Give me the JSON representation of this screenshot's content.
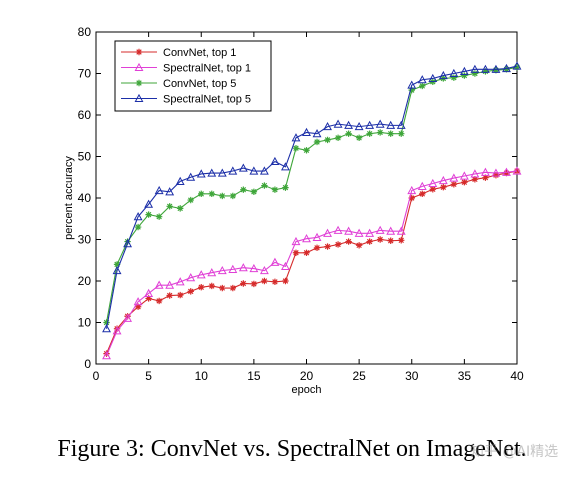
{
  "chart_data": {
    "type": "line",
    "xlabel": "epoch",
    "ylabel": "percent accuracy",
    "xlim": [
      0,
      40
    ],
    "ylim": [
      0,
      80
    ],
    "xticks": [
      0,
      5,
      10,
      15,
      20,
      25,
      30,
      35,
      40
    ],
    "yticks": [
      0,
      10,
      20,
      30,
      40,
      50,
      60,
      70,
      80
    ],
    "grid": false,
    "legend_position": "top-left",
    "x": [
      1,
      2,
      3,
      4,
      5,
      6,
      7,
      8,
      9,
      10,
      11,
      12,
      13,
      14,
      15,
      16,
      17,
      18,
      19,
      20,
      21,
      22,
      23,
      24,
      25,
      26,
      27,
      28,
      29,
      30,
      31,
      32,
      33,
      34,
      35,
      36,
      37,
      38,
      39,
      40
    ],
    "series": [
      {
        "name": "ConvNet, top 1",
        "color": "#d62b2b",
        "marker": "star",
        "values": [
          2.5,
          8.5,
          11.5,
          13.8,
          15.8,
          15.2,
          16.5,
          16.6,
          17.5,
          18.5,
          18.8,
          18.3,
          18.3,
          19.4,
          19.3,
          20.0,
          19.8,
          20.0,
          26.8,
          26.8,
          28.0,
          28.3,
          28.8,
          29.5,
          28.6,
          29.5,
          30.0,
          29.7,
          29.8,
          40.0,
          41.0,
          42.1,
          42.6,
          43.3,
          43.8,
          44.5,
          44.9,
          45.5,
          46.0,
          46.5
        ]
      },
      {
        "name": "SpectralNet, top 1",
        "color": "#e040d6",
        "marker": "triangle",
        "values": [
          2.0,
          8.0,
          11.0,
          15.0,
          17.0,
          19.0,
          19.0,
          19.8,
          20.8,
          21.5,
          22.0,
          22.5,
          22.8,
          23.2,
          23.0,
          22.5,
          24.5,
          23.5,
          29.5,
          30.2,
          30.5,
          31.5,
          32.2,
          32.0,
          31.5,
          31.5,
          32.2,
          32.0,
          32.0,
          41.8,
          42.8,
          43.5,
          44.2,
          44.8,
          45.3,
          45.8,
          46.2,
          46.0,
          46.2,
          46.5
        ]
      },
      {
        "name": "ConvNet, top 5",
        "color": "#3fa63a",
        "marker": "star",
        "values": [
          10.0,
          24.0,
          29.5,
          33.0,
          36.0,
          35.5,
          38.0,
          37.5,
          39.5,
          41.0,
          41.0,
          40.5,
          40.5,
          42.0,
          41.5,
          43.0,
          42.0,
          42.5,
          52.0,
          51.5,
          53.5,
          54.0,
          54.5,
          55.5,
          54.5,
          55.5,
          55.8,
          55.5,
          55.5,
          66.0,
          67.0,
          68.0,
          68.8,
          69.0,
          69.5,
          70.0,
          70.5,
          70.8,
          71.0,
          71.5
        ]
      },
      {
        "name": "SpectralNet, top 5",
        "color": "#1c2fa8",
        "marker": "triangle",
        "values": [
          8.5,
          22.5,
          29.0,
          35.5,
          38.5,
          41.8,
          41.5,
          44.0,
          45.0,
          45.8,
          46.0,
          46.0,
          46.5,
          47.2,
          46.5,
          46.5,
          48.8,
          47.5,
          54.5,
          55.8,
          55.5,
          57.2,
          57.8,
          57.5,
          57.2,
          57.5,
          57.8,
          57.5,
          57.5,
          67.2,
          68.5,
          68.8,
          69.5,
          70.0,
          70.5,
          71.0,
          71.0,
          71.0,
          71.2,
          71.8
        ]
      }
    ]
  },
  "caption": "Figure 3: ConvNet vs. SpectralNet on ImageNet.",
  "watermark": "知乎 @AI精选"
}
